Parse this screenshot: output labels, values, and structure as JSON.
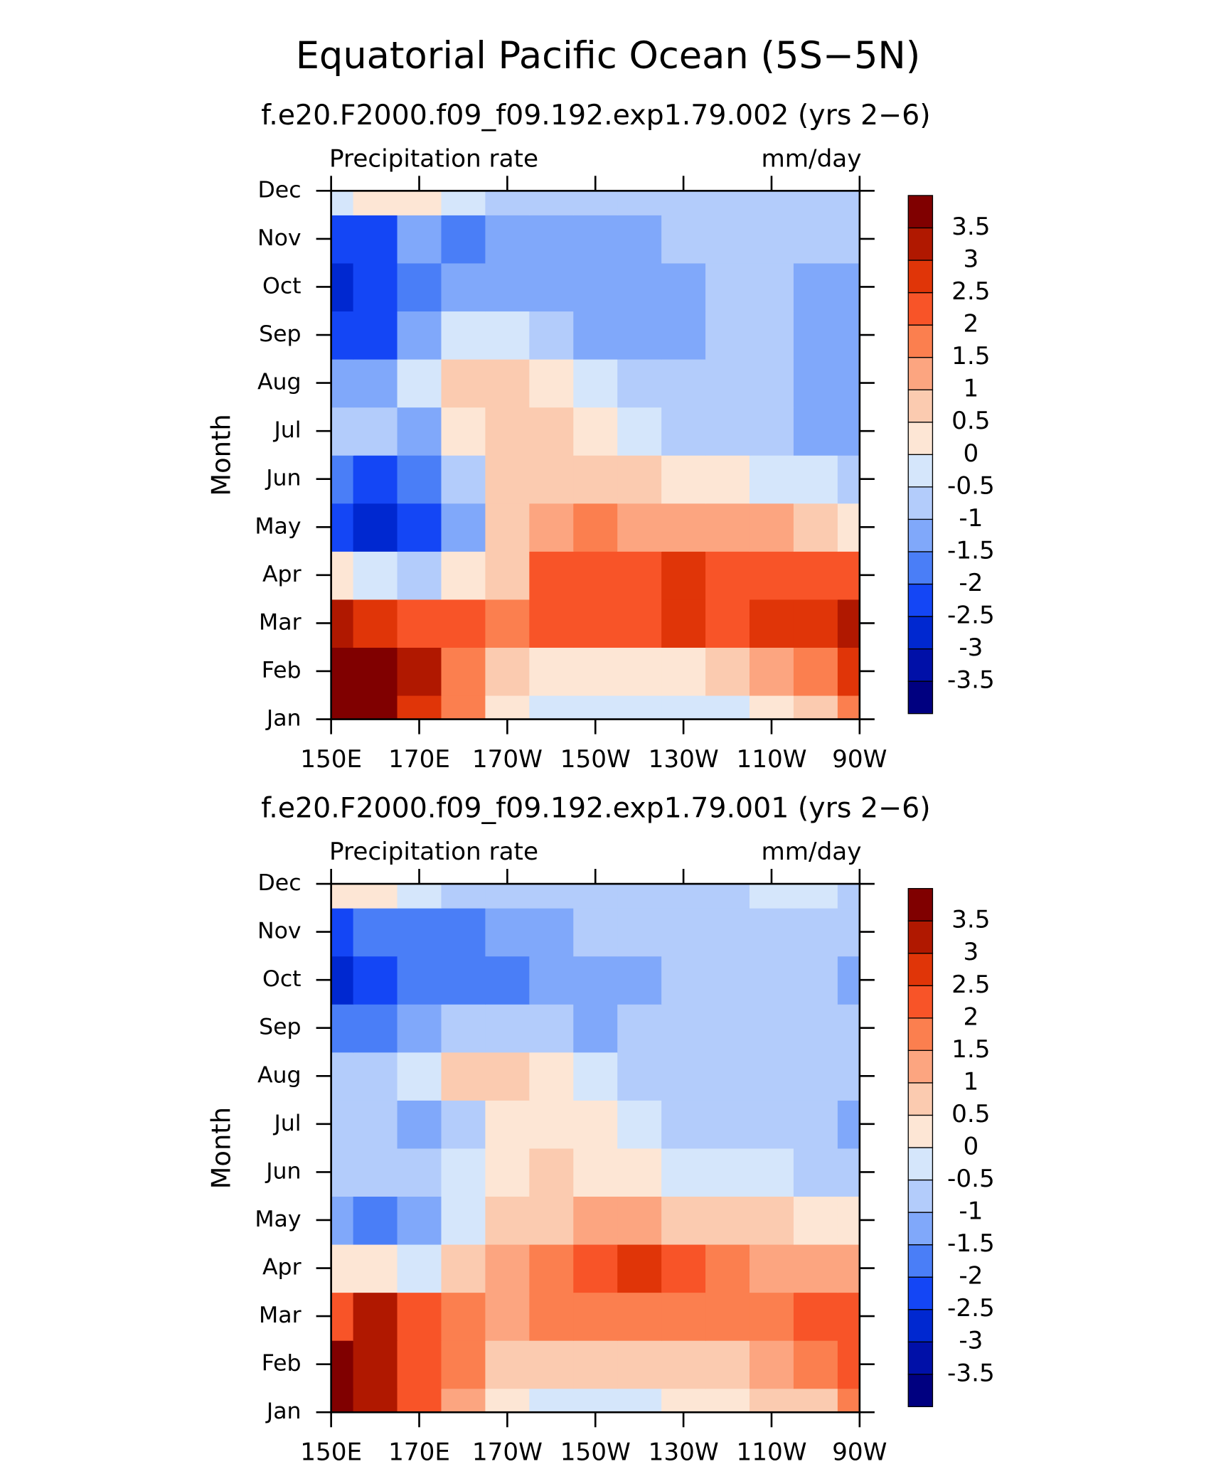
{
  "title": "Equatorial Pacific Ocean (5S−5N)",
  "chart_data": [
    {
      "type": "contour",
      "title": "f.e20.F2000.f09_f09.192.exp1.79.002 (yrs 2−6)",
      "left_label": "Precipitation rate",
      "right_label": "mm/day",
      "y_label": "Month",
      "categories": [
        "Jan",
        "Feb",
        "Mar",
        "Apr",
        "May",
        "Jun",
        "Jul",
        "Aug",
        "Sep",
        "Oct",
        "Nov",
        "Dec"
      ],
      "x": [
        150,
        160,
        170,
        180,
        190,
        200,
        210,
        220,
        230,
        240,
        250,
        260,
        270
      ],
      "xlim": [
        150,
        270
      ],
      "xticks": [
        {
          "value": 150,
          "label": "150E"
        },
        {
          "value": 170,
          "label": "170E"
        },
        {
          "value": 190,
          "label": "170W"
        },
        {
          "value": 210,
          "label": "150W"
        },
        {
          "value": 230,
          "label": "130W"
        },
        {
          "value": 250,
          "label": "110W"
        },
        {
          "value": 270,
          "label": "90W"
        }
      ],
      "z": [
        [
          4,
          4,
          2.5,
          1.8,
          0.3,
          -0.3,
          -0.3,
          -0.3,
          -0.3,
          -0.3,
          0.3,
          0.7,
          1.5
        ],
        [
          4,
          4,
          3,
          1.8,
          0.7,
          0.3,
          0.3,
          0.3,
          0.4,
          0.7,
          1.2,
          1.7,
          2.5
        ],
        [
          3.2,
          2.8,
          2.3,
          2.2,
          1.8,
          2.1,
          2.1,
          2.3,
          2.6,
          2.3,
          2.6,
          2.8,
          3
        ],
        [
          0.2,
          -0.3,
          -1,
          0,
          0.8,
          2.1,
          2.3,
          2.4,
          2.6,
          2.3,
          2.2,
          2,
          2.1
        ],
        [
          -2.2,
          -2.8,
          -2.3,
          -1.5,
          0.5,
          1.3,
          1.6,
          1.4,
          1.3,
          1.2,
          1,
          0.8,
          0.4
        ],
        [
          -1.8,
          -2.2,
          -1.8,
          -1,
          0.7,
          0.9,
          0.7,
          0.5,
          0.3,
          0.1,
          -0.3,
          -0.4,
          -0.6
        ],
        [
          -0.8,
          -1,
          -1.2,
          0.3,
          0.8,
          0.6,
          0.3,
          -0.2,
          -0.6,
          -0.7,
          -0.8,
          -1.2,
          -1.2
        ],
        [
          -1.3,
          -1.2,
          -0.3,
          0.6,
          0.8,
          0.3,
          -0.3,
          -0.6,
          -0.8,
          -0.8,
          -0.8,
          -1.2,
          -1.3
        ],
        [
          -2.3,
          -2.1,
          -1.3,
          -0.5,
          -0.2,
          -0.7,
          -1.1,
          -1.2,
          -1.2,
          -0.8,
          -0.8,
          -1.2,
          -1.3
        ],
        [
          -2.6,
          -2.5,
          -1.6,
          -1.4,
          -1.2,
          -1.3,
          -1.3,
          -1.3,
          -1.2,
          -0.8,
          -0.8,
          -1.2,
          -1.3
        ],
        [
          -2.2,
          -2.1,
          -1.2,
          -1.6,
          -1.5,
          -1.2,
          -1.2,
          -1.1,
          -1,
          -0.8,
          -0.8,
          -0.9,
          -1
        ],
        [
          -0.3,
          0.2,
          0.4,
          -0.3,
          -0.8,
          -0.9,
          -0.9,
          -0.8,
          -0.8,
          -0.8,
          -0.8,
          -0.8,
          -0.9
        ]
      ],
      "levels": [
        -3.5,
        -3,
        -2.5,
        -2,
        -1.5,
        -1,
        -0.5,
        0,
        0.5,
        1,
        1.5,
        2,
        2.5,
        3,
        3.5
      ],
      "colors": [
        "#000080",
        "#0010a8",
        "#0028d0",
        "#1446f5",
        "#4a7ef7",
        "#80a8fa",
        "#b3ccfb",
        "#d5e6fb",
        "#fde6d5",
        "#fbcbb0",
        "#fca580",
        "#fb7f4f",
        "#f85428",
        "#e03508",
        "#b01800",
        "#800000"
      ]
    },
    {
      "type": "contour",
      "title": "f.e20.F2000.f09_f09.192.exp1.79.001 (yrs 2−6)",
      "left_label": "Precipitation rate",
      "right_label": "mm/day",
      "y_label": "Month",
      "categories": [
        "Jan",
        "Feb",
        "Mar",
        "Apr",
        "May",
        "Jun",
        "Jul",
        "Aug",
        "Sep",
        "Oct",
        "Nov",
        "Dec"
      ],
      "x": [
        150,
        160,
        170,
        180,
        190,
        200,
        210,
        220,
        230,
        240,
        250,
        260,
        270
      ],
      "xlim": [
        150,
        270
      ],
      "xticks": [
        {
          "value": 150,
          "label": "150E"
        },
        {
          "value": 170,
          "label": "170E"
        },
        {
          "value": 190,
          "label": "170W"
        },
        {
          "value": 210,
          "label": "150W"
        },
        {
          "value": 230,
          "label": "130W"
        },
        {
          "value": 250,
          "label": "110W"
        },
        {
          "value": 270,
          "label": "90W"
        }
      ],
      "z": [
        [
          3.8,
          3.2,
          2.2,
          1.2,
          0.3,
          -0.2,
          -0.3,
          -0.2,
          0.2,
          0.4,
          0.6,
          0.9,
          1.5
        ],
        [
          3.6,
          3.2,
          2.3,
          1.8,
          0.8,
          0.6,
          0.6,
          0.6,
          0.7,
          0.9,
          1.2,
          1.6,
          2.2
        ],
        [
          2.2,
          3.1,
          2.4,
          1.8,
          1.4,
          1.5,
          1.7,
          1.8,
          1.8,
          1.7,
          1.7,
          2.3,
          2.3
        ],
        [
          0.3,
          0.1,
          -0.3,
          0.5,
          1,
          1.9,
          2.2,
          2.6,
          2.3,
          1.9,
          1.4,
          1.2,
          1
        ],
        [
          -1.5,
          -2,
          -1.5,
          -0.3,
          0.5,
          0.9,
          1,
          1,
          0.9,
          0.8,
          0.6,
          0.3,
          0.1
        ],
        [
          -1,
          -0.9,
          -0.9,
          -0.4,
          0.4,
          0.5,
          0.3,
          0.1,
          -0.2,
          -0.3,
          -0.4,
          -0.6,
          -0.8
        ],
        [
          -1,
          -0.9,
          -1.1,
          -0.6,
          0.3,
          0.3,
          0,
          -0.3,
          -0.6,
          -0.8,
          -0.9,
          -0.9,
          -1.2
        ],
        [
          -1,
          -0.9,
          -0.3,
          0.7,
          0.5,
          0.1,
          -0.3,
          -0.6,
          -0.8,
          -0.9,
          -0.9,
          -0.9,
          -1
        ],
        [
          -1.6,
          -1.8,
          -1.1,
          -0.8,
          -0.8,
          -1,
          -1.1,
          -1,
          -0.9,
          -0.9,
          -0.9,
          -0.9,
          -1
        ],
        [
          -2.6,
          -2.5,
          -2,
          -1.6,
          -1.6,
          -1.3,
          -1.2,
          -1.1,
          -0.9,
          -0.9,
          -0.9,
          -0.9,
          -1.2
        ],
        [
          -2.1,
          -2,
          -1.7,
          -1.6,
          -1.4,
          -1.1,
          -1,
          -1,
          -0.9,
          -0.9,
          -0.9,
          -0.9,
          -1
        ],
        [
          0.2,
          0.3,
          -0.3,
          -0.8,
          -0.9,
          -0.9,
          -0.8,
          -0.8,
          -0.8,
          -0.7,
          -0.5,
          -0.3,
          -0.8
        ]
      ],
      "levels": [
        -3.5,
        -3,
        -2.5,
        -2,
        -1.5,
        -1,
        -0.5,
        0,
        0.5,
        1,
        1.5,
        2,
        2.5,
        3,
        3.5
      ],
      "colors": [
        "#000080",
        "#0010a8",
        "#0028d0",
        "#1446f5",
        "#4a7ef7",
        "#80a8fa",
        "#b3ccfb",
        "#d5e6fb",
        "#fde6d5",
        "#fbcbb0",
        "#fca580",
        "#fb7f4f",
        "#f85428",
        "#e03508",
        "#b01800",
        "#800000"
      ]
    }
  ]
}
